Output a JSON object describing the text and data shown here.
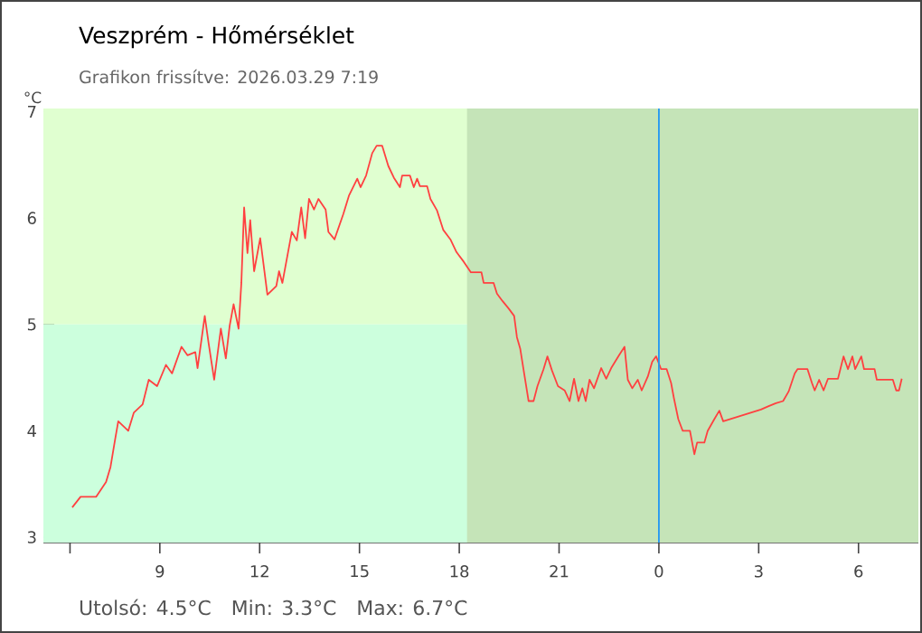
{
  "chart_data": {
    "type": "line",
    "title": "Veszprém - Hőmérséklet",
    "subtitle": "Grafikon frissítve: 2026.03.29 7:19",
    "ylabel": "°C",
    "annotations": [
      "Utolsó: 4.5°C",
      "Min: 3.3°C",
      "Max: 6.7°C"
    ],
    "color": "#ff4040",
    "x": [
      "2026-03-28T06:22",
      "2026-03-28T06:37",
      "2026-03-28T07:05",
      "2026-03-28T07:23",
      "2026-03-28T07:31",
      "2026-03-28T07:39",
      "2026-03-28T07:45",
      "2026-03-28T08:03",
      "2026-03-28T08:13",
      "2026-03-28T08:29",
      "2026-03-28T08:40",
      "2026-03-28T08:55",
      "2026-03-28T09:11",
      "2026-03-28T09:22",
      "2026-03-28T09:39",
      "2026-03-28T09:50",
      "2026-03-28T10:04",
      "2026-03-28T10:08",
      "2026-03-28T10:21",
      "2026-03-28T10:28",
      "2026-03-28T10:38",
      "2026-03-28T10:50",
      "2026-03-28T10:59",
      "2026-03-28T11:06",
      "2026-03-28T11:13",
      "2026-03-28T11:22",
      "2026-03-28T11:27",
      "2026-03-28T11:32",
      "2026-03-28T11:38",
      "2026-03-28T11:43",
      "2026-03-28T11:50",
      "2026-03-28T12:01",
      "2026-03-28T12:14",
      "2026-03-28T12:30",
      "2026-03-28T12:35",
      "2026-03-28T12:41",
      "2026-03-28T12:58",
      "2026-03-28T13:07",
      "2026-03-28T13:15",
      "2026-03-28T13:22",
      "2026-03-28T13:29",
      "2026-03-28T13:38",
      "2026-03-28T13:46",
      "2026-03-28T13:59",
      "2026-03-28T14:04",
      "2026-03-28T14:15",
      "2026-03-28T14:31",
      "2026-03-28T14:41",
      "2026-03-28T14:56",
      "2026-03-28T15:02",
      "2026-03-28T15:12",
      "2026-03-28T15:23",
      "2026-03-28T15:31",
      "2026-03-28T15:41",
      "2026-03-28T15:52",
      "2026-03-28T16:02",
      "2026-03-28T16:13",
      "2026-03-28T16:17",
      "2026-03-28T16:31",
      "2026-03-28T16:38",
      "2026-03-28T16:44",
      "2026-03-28T16:49",
      "2026-03-28T17:02",
      "2026-03-28T17:08",
      "2026-03-28T17:20",
      "2026-03-28T17:31",
      "2026-03-28T17:44",
      "2026-03-28T17:55",
      "2026-03-28T18:08",
      "2026-03-28T18:21",
      "2026-03-28T18:40",
      "2026-03-28T18:44",
      "2026-03-28T19:02",
      "2026-03-28T19:08",
      "2026-03-28T19:18",
      "2026-03-28T19:29",
      "2026-03-28T19:39",
      "2026-03-28T19:44",
      "2026-03-28T19:50",
      "2026-03-28T19:57",
      "2026-03-28T20:05",
      "2026-03-28T20:14",
      "2026-03-28T20:21",
      "2026-03-28T20:32",
      "2026-03-28T20:39",
      "2026-03-28T20:47",
      "2026-03-28T20:58",
      "2026-03-28T21:10",
      "2026-03-28T21:19",
      "2026-03-28T21:27",
      "2026-03-28T21:35",
      "2026-03-28T21:42",
      "2026-03-28T21:48",
      "2026-03-28T21:55",
      "2026-03-28T22:03",
      "2026-03-28T22:16",
      "2026-03-28T22:25",
      "2026-03-28T22:34",
      "2026-03-28T22:48",
      "2026-03-28T22:58",
      "2026-03-28T23:04",
      "2026-03-28T23:12",
      "2026-03-28T23:22",
      "2026-03-28T23:29",
      "2026-03-28T23:40",
      "2026-03-28T23:48",
      "2026-03-28T23:55",
      "2026-03-29T00:04",
      "2026-03-29T00:14",
      "2026-03-29T00:22",
      "2026-03-29T00:27",
      "2026-03-29T00:35",
      "2026-03-29T00:43",
      "2026-03-29T00:56",
      "2026-03-29T01:04",
      "2026-03-29T01:09",
      "2026-03-29T01:22",
      "2026-03-29T01:28",
      "2026-03-29T01:40",
      "2026-03-29T01:49",
      "2026-03-29T01:56",
      "2026-03-29T03:04",
      "2026-03-29T03:17",
      "2026-03-29T03:31",
      "2026-03-29T03:44",
      "2026-03-29T03:54",
      "2026-03-29T04:05",
      "2026-03-29T04:10",
      "2026-03-29T04:28",
      "2026-03-29T04:36",
      "2026-03-29T04:41",
      "2026-03-29T04:49",
      "2026-03-29T04:57",
      "2026-03-29T05:05",
      "2026-03-29T05:23",
      "2026-03-29T05:33",
      "2026-03-29T05:41",
      "2026-03-29T05:49",
      "2026-03-29T05:54",
      "2026-03-29T06:05",
      "2026-03-29T06:10",
      "2026-03-29T06:29",
      "2026-03-29T06:33",
      "2026-03-29T07:02",
      "2026-03-29T07:08",
      "2026-03-29T07:13",
      "2026-03-29T07:18"
    ],
    "values": [
      3.28,
      3.38,
      3.38,
      3.52,
      3.66,
      3.91,
      4.09,
      4.0,
      4.17,
      4.25,
      4.48,
      4.42,
      4.62,
      4.54,
      4.79,
      4.71,
      4.74,
      4.59,
      5.08,
      4.82,
      4.48,
      4.96,
      4.68,
      4.99,
      5.19,
      4.96,
      5.39,
      6.1,
      5.67,
      5.98,
      5.5,
      5.81,
      5.28,
      5.36,
      5.5,
      5.39,
      5.87,
      5.79,
      6.1,
      5.81,
      6.18,
      6.08,
      6.18,
      6.08,
      5.87,
      5.8,
      6.04,
      6.21,
      6.37,
      6.29,
      6.4,
      6.61,
      6.68,
      6.68,
      6.49,
      6.38,
      6.29,
      6.4,
      6.4,
      6.29,
      6.37,
      6.3,
      6.3,
      6.18,
      6.07,
      5.89,
      5.8,
      5.68,
      5.59,
      5.49,
      5.49,
      5.39,
      5.39,
      5.29,
      5.22,
      5.15,
      5.08,
      4.88,
      4.77,
      4.54,
      4.28,
      4.28,
      4.42,
      4.58,
      4.7,
      4.57,
      4.42,
      4.38,
      4.28,
      4.49,
      4.28,
      4.4,
      4.28,
      4.48,
      4.4,
      4.59,
      4.49,
      4.59,
      4.71,
      4.79,
      4.48,
      4.4,
      4.48,
      4.38,
      4.51,
      4.65,
      4.7,
      4.58,
      4.58,
      4.45,
      4.31,
      4.11,
      4.0,
      4.0,
      3.78,
      3.89,
      3.89,
      4.0,
      4.11,
      4.19,
      4.09,
      4.2,
      4.23,
      4.26,
      4.28,
      4.37,
      4.54,
      4.58,
      4.58,
      4.45,
      4.38,
      4.48,
      4.38,
      4.49,
      4.49,
      4.7,
      4.58,
      4.7,
      4.58,
      4.7,
      4.58,
      4.58,
      4.48,
      4.48,
      4.38,
      4.38,
      4.49
    ],
    "xlim": [
      "2026-03-28T05:30",
      "2026-03-29T07:48"
    ],
    "ylim": [
      2.95,
      7.03
    ],
    "xticks": [
      {
        "value": "2026-03-28T06:18",
        "label": null
      },
      {
        "value": "2026-03-28T09:00",
        "label": "9"
      },
      {
        "value": "2026-03-28T12:00",
        "label": "12"
      },
      {
        "value": "2026-03-28T15:00",
        "label": "15"
      },
      {
        "value": "2026-03-28T18:00",
        "label": "18"
      },
      {
        "value": "2026-03-28T21:00",
        "label": "21"
      },
      {
        "value": "2026-03-29T00:00",
        "label": "0"
      },
      {
        "value": "2026-03-29T03:00",
        "label": "3"
      },
      {
        "value": "2026-03-29T06:00",
        "label": "6"
      }
    ],
    "yticks": [
      3,
      4,
      5,
      6,
      7
    ],
    "bands": [
      {
        "axis": "y",
        "from": 5,
        "to": 7.03,
        "color": "#e0ffd0"
      },
      {
        "axis": "y",
        "from": 2.95,
        "to": 5,
        "color": "#ccffdd"
      },
      {
        "axis": "x",
        "from": "2026-03-28T18:14",
        "to": "2026-03-29T07:48",
        "color": "#c5e4b8"
      }
    ],
    "ref_lines": [
      {
        "axis": "x",
        "value": "2026-03-29T00:00",
        "color": "#2196f3"
      }
    ]
  }
}
